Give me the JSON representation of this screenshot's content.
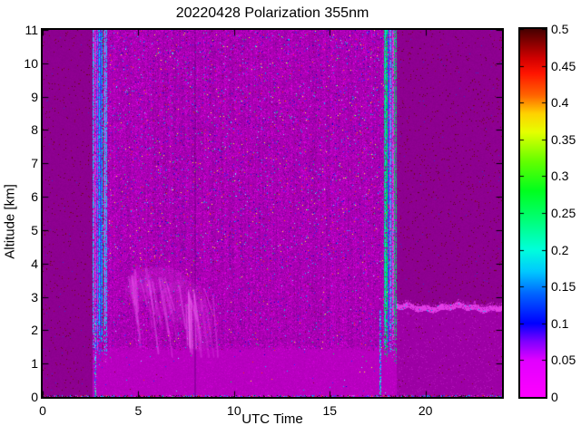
{
  "window": {
    "background": "#ffffff"
  },
  "chart_data": {
    "type": "heatmap",
    "title": "20220428 Polarization 355nm",
    "xlabel": "UTC Time",
    "ylabel": "Altitude [km]",
    "xlim": [
      0,
      24
    ],
    "ylim": [
      0,
      11
    ],
    "x_ticks": [
      "0",
      "5",
      "10",
      "15",
      "20"
    ],
    "y_ticks": [
      "0",
      "1",
      "2",
      "3",
      "4",
      "5",
      "6",
      "7",
      "8",
      "9",
      "10",
      "11"
    ],
    "grid": false,
    "legend": "none",
    "colorbar": {
      "min": 0,
      "max": 0.5,
      "tick_labels": [
        "0",
        "0.05",
        "0.1",
        "0.15",
        "0.2",
        "0.25",
        "0.3",
        "0.35",
        "0.4",
        "0.45",
        "0.5"
      ],
      "position": "right",
      "colormap_stops": [
        {
          "v": 0.0,
          "c": "#ff00ff"
        },
        {
          "v": 0.05,
          "c": "#e100ff"
        },
        {
          "v": 0.075,
          "c": "#8000ff"
        },
        {
          "v": 0.1,
          "c": "#0000ff"
        },
        {
          "v": 0.14,
          "c": "#0064ff"
        },
        {
          "v": 0.17,
          "c": "#00c8ff"
        },
        {
          "v": 0.2,
          "c": "#00ffdc"
        },
        {
          "v": 0.24,
          "c": "#00ff78"
        },
        {
          "v": 0.28,
          "c": "#00ff1e"
        },
        {
          "v": 0.32,
          "c": "#64ff00"
        },
        {
          "v": 0.36,
          "c": "#e6ff00"
        },
        {
          "v": 0.385,
          "c": "#ffd200"
        },
        {
          "v": 0.41,
          "c": "#ff6400"
        },
        {
          "v": 0.44,
          "c": "#ff1400"
        },
        {
          "v": 0.46,
          "c": "#d20000"
        },
        {
          "v": 0.48,
          "c": "#8c0000"
        },
        {
          "v": 0.5,
          "c": "#460000"
        }
      ]
    },
    "content": {
      "description": "Lidar depolarization quicklook: low values (magenta, ~0-0.05) dominate; speckle noise during 03:20-17:50 UTC measurement period; vertical calibration stripe clusters near 02:40-03:20 and 17:50-18:30 UTC; bright magenta precipitation fall streaks 04:30-09:30 UTC between ~1.2 and 4 km; residual aerosol layer near 2.7 km after 18:30 UTC.",
      "quiet_base_color": "#8d008f",
      "noisy_base_color": "#aa00b2",
      "boundary_layer_color": "#b700bf",
      "dark_speckle_color": "#5a0a19",
      "bright_streak_color": "#ea55ee",
      "layer_color": "#e43ce6",
      "boundary_layer_top_km": 1.45,
      "zones": {
        "quiet1_hours": [
          0,
          2.62
        ],
        "cluster1_hours": [
          2.62,
          3.35
        ],
        "measurement_hours": [
          3.35,
          17.85
        ],
        "cluster2_hours": [
          17.85,
          18.5
        ],
        "quiet2_hours": [
          18.5,
          24
        ]
      },
      "speckle_columns": [
        {
          "hour": 2.72,
          "alt_max": 2.35
        },
        {
          "hour": 17.62,
          "alt_max": 2.6
        }
      ],
      "dark_column_hour": 7.9,
      "fallstreaks": {
        "hours": [
          4.4,
          9.5
        ],
        "alt_range": [
          1.2,
          3.9
        ]
      },
      "residual_layer": {
        "hours": [
          18.5,
          24
        ],
        "altitude": 2.66
      }
    }
  }
}
